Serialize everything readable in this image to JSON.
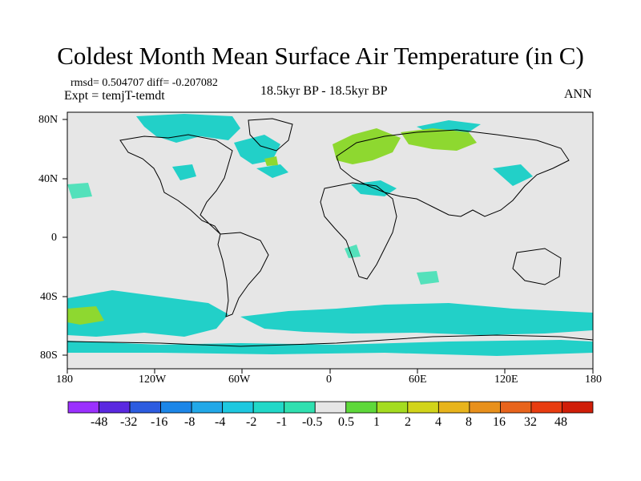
{
  "title": "Coldest Month Mean Surface Air Temperature (in C)",
  "stats_line": "rmsd= 0.504707 diff= -0.207082",
  "experiment_line": "Expt = temjT-temdt",
  "center_label": "18.5kyr BP - 18.5kyr BP",
  "season_label": "ANN",
  "lat_labels": [
    "80N",
    "40N",
    "0",
    "40S",
    "80S"
  ],
  "lon_labels": [
    "180",
    "120W",
    "60W",
    "0",
    "60E",
    "120E",
    "180"
  ],
  "colorbar": {
    "labels": [
      "-48",
      "-32",
      "-16",
      "-8",
      "-4",
      "-2",
      "-1",
      "-0.5",
      "0.5",
      "1",
      "2",
      "4",
      "8",
      "16",
      "32",
      "48"
    ],
    "colors": [
      "#9b30ff",
      "#5a28e0",
      "#2c5ce0",
      "#1c86e8",
      "#22a8e8",
      "#1ec8e0",
      "#22d8c8",
      "#30e0b0",
      "#e6e6e6",
      "#5ed83a",
      "#a4dc20",
      "#d2d41a",
      "#e8b41c",
      "#e8901c",
      "#e8641c",
      "#e83c10",
      "#d01e08"
    ]
  },
  "colors": {
    "background": "#e6e6e6",
    "cool_anomaly": "#22d0c8",
    "light_cool": "#30e0b0",
    "warm_anomaly": "#8ed830",
    "coastline": "#000000"
  }
}
